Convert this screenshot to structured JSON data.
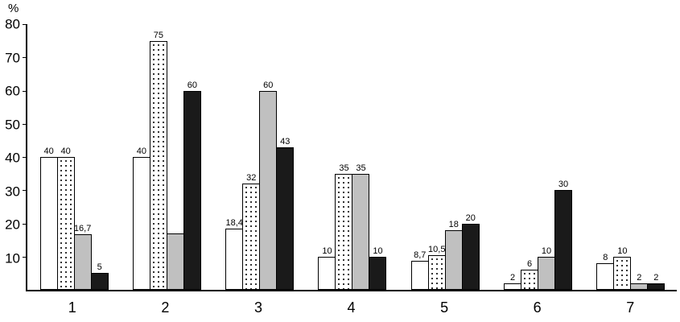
{
  "chart_data": {
    "type": "bar",
    "title": "",
    "ylabel": "%",
    "xlabel": "",
    "ylim": [
      0,
      80
    ],
    "yticks": [
      10,
      20,
      30,
      40,
      50,
      60,
      70,
      80
    ],
    "grid": false,
    "legend": "none",
    "categories": [
      "1",
      "2",
      "3",
      "4",
      "5",
      "6",
      "7"
    ],
    "series": [
      {
        "name": "white",
        "color": "#ffffff",
        "values": [
          40,
          40,
          18.4,
          10,
          8.7,
          2,
          8
        ],
        "labels": [
          "40",
          "40",
          "18,4",
          "10",
          "8,7",
          "2",
          "8"
        ]
      },
      {
        "name": "dotted",
        "color": "#ffffff",
        "pattern": "dots",
        "values": [
          40,
          75,
          32,
          35,
          10.5,
          6,
          10
        ],
        "labels": [
          "40",
          "75",
          "32",
          "35",
          "10,5",
          "6",
          "10"
        ]
      },
      {
        "name": "gray",
        "color": "#c0c0c0",
        "values": [
          16.7,
          17,
          60,
          35,
          18,
          10,
          2
        ],
        "labels": [
          "16,7",
          "",
          "60",
          "35",
          "18",
          "10",
          "2"
        ]
      },
      {
        "name": "black",
        "color": "#1a1a1a",
        "values": [
          5,
          60,
          43,
          10,
          20,
          30,
          2
        ],
        "labels": [
          "5",
          "60",
          "43",
          "10",
          "20",
          "30",
          "2"
        ]
      }
    ]
  }
}
